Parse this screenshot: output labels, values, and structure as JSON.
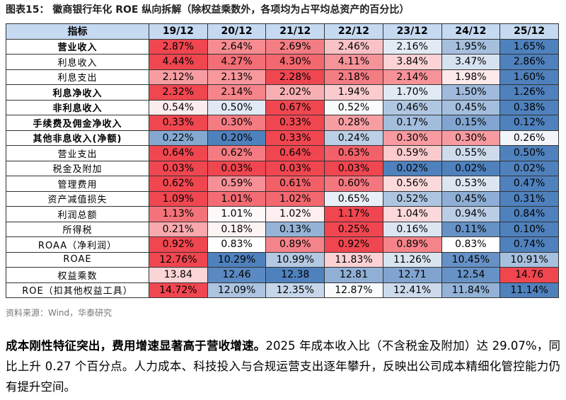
{
  "header": {
    "title": "图表15： 徽商银行年化 ROE 纵向拆解（除权益乘数外，各项均为占平均总资产的百分比）"
  },
  "table": {
    "columns": [
      "指标",
      "19/12",
      "20/12",
      "21/12",
      "22/12",
      "23/12",
      "24/12",
      "25/12"
    ],
    "rows": [
      {
        "label": "营业收入",
        "bold": true,
        "cells": [
          "2.87%",
          "2.64%",
          "2.69%",
          "2.46%",
          "2.16%",
          "1.95%",
          "1.65%"
        ]
      },
      {
        "label": "利息收入",
        "bold": false,
        "cells": [
          "4.44%",
          "4.27%",
          "4.30%",
          "4.11%",
          "3.84%",
          "3.47%",
          "2.86%"
        ]
      },
      {
        "label": "利息支出",
        "bold": false,
        "cells": [
          "2.12%",
          "2.13%",
          "2.28%",
          "2.18%",
          "2.14%",
          "1.98%",
          "1.60%"
        ]
      },
      {
        "label": "利息净收入",
        "bold": true,
        "cells": [
          "2.32%",
          "2.14%",
          "2.02%",
          "1.94%",
          "1.70%",
          "1.50%",
          "1.26%"
        ]
      },
      {
        "label": "非利息收入",
        "bold": true,
        "cells": [
          "0.54%",
          "0.50%",
          "0.67%",
          "0.52%",
          "0.46%",
          "0.45%",
          "0.38%"
        ]
      },
      {
        "label": "手续费及佣金净收入",
        "bold": true,
        "cells": [
          "0.33%",
          "0.30%",
          "0.33%",
          "0.28%",
          "0.17%",
          "0.15%",
          "0.12%"
        ]
      },
      {
        "label": "其他非息收入(净额)",
        "bold": true,
        "cells": [
          "0.22%",
          "0.20%",
          "0.33%",
          "0.24%",
          "0.30%",
          "0.30%",
          "0.26%"
        ]
      },
      {
        "label": "营业支出",
        "bold": false,
        "cells": [
          "0.64%",
          "0.62%",
          "0.64%",
          "0.63%",
          "0.59%",
          "0.55%",
          "0.50%"
        ]
      },
      {
        "label": "税金及附加",
        "bold": false,
        "cells": [
          "0.03%",
          "0.03%",
          "0.03%",
          "0.03%",
          "0.02%",
          "0.02%",
          "0.02%"
        ]
      },
      {
        "label": "管理费用",
        "bold": false,
        "cells": [
          "0.62%",
          "0.59%",
          "0.61%",
          "0.60%",
          "0.56%",
          "0.53%",
          "0.47%"
        ]
      },
      {
        "label": "资产减值损失",
        "bold": false,
        "cells": [
          "1.09%",
          "1.01%",
          "1.02%",
          "0.65%",
          "0.52%",
          "0.45%",
          "0.31%"
        ]
      },
      {
        "label": "利润总额",
        "bold": false,
        "cells": [
          "1.13%",
          "1.01%",
          "1.02%",
          "1.17%",
          "1.04%",
          "0.94%",
          "0.84%"
        ]
      },
      {
        "label": "所得税",
        "bold": false,
        "cells": [
          "0.21%",
          "0.18%",
          "0.13%",
          "0.25%",
          "0.16%",
          "0.11%",
          "0.10%"
        ]
      },
      {
        "label": "ROAA（净利润）",
        "bold": false,
        "cells": [
          "0.92%",
          "0.83%",
          "0.89%",
          "0.92%",
          "0.89%",
          "0.83%",
          "0.74%"
        ]
      },
      {
        "label": "ROAE",
        "bold": false,
        "cells": [
          "12.76%",
          "10.29%",
          "10.99%",
          "11.83%",
          "11.26%",
          "10.45%",
          "10.91%"
        ]
      },
      {
        "label": "权益乘数",
        "bold": false,
        "cells": [
          "13.84",
          "12.46",
          "12.38",
          "12.81",
          "12.71",
          "12.54",
          "14.76"
        ]
      },
      {
        "label": "ROE（扣其他权益工具）",
        "bold": false,
        "cells": [
          "14.72%",
          "12.09%",
          "12.35%",
          "12.87%",
          "12.41%",
          "11.84%",
          "11.14%"
        ]
      }
    ]
  },
  "source": "资料来源：Wind，华泰研究",
  "paragraph": {
    "bold": "成本刚性特征突出，费用增速显著高于营收增速。",
    "text": "2025 年成本收入比（不含税金及附加）达 29.07%，同比上升 0.27 个百分点。人力成本、科技投入与合规运营支出逐年攀升，反映出公司成本精细化管控能力仍有提升空间。"
  }
}
